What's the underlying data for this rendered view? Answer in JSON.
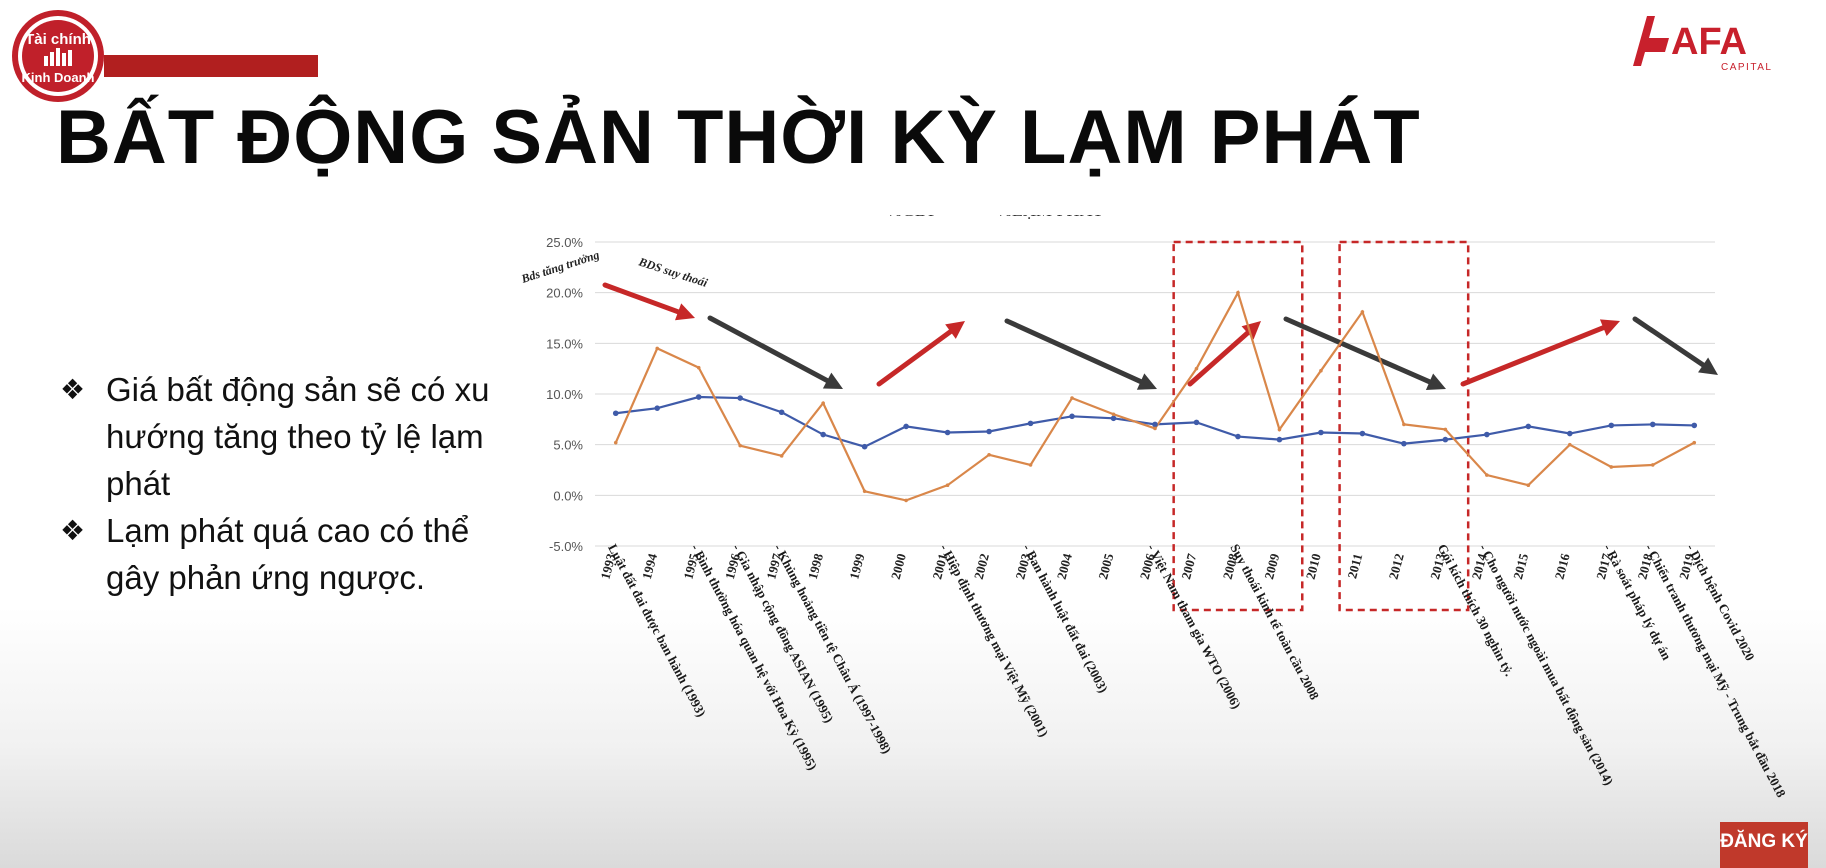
{
  "branding": {
    "left_logo_line1": "Tài chính",
    "left_logo_line2": "Kinh Doanh",
    "right_logo_name": "AFA",
    "right_logo_sub": "CAPITAL",
    "accent_color": "#b11f1f",
    "right_logo_color": "#c8202c"
  },
  "slide": {
    "title": "BẤT ĐỘNG SẢN THỜI KỲ LẠM PHÁT",
    "bullets": [
      "Giá bất động sản sẽ có xu hướng tăng theo tỷ lệ lạm phát",
      "Lạm phát quá cao có thể gây phản ứng ngược."
    ],
    "bullet_marker": "❖"
  },
  "subscribe_label": "ĐĂNG KÝ",
  "chart_data": {
    "type": "line",
    "title": "",
    "xlabel": "",
    "ylabel": "",
    "ylim": [
      -5,
      25
    ],
    "y_ticks": [
      "-5.0%",
      "0.0%",
      "5.0%",
      "10.0%",
      "15.0%",
      "20.0%",
      "25.0%"
    ],
    "y_tick_values": [
      -5,
      0,
      5,
      10,
      15,
      20,
      25
    ],
    "grid": true,
    "legend_position": "top",
    "categories": [
      "1993",
      "1994",
      "1995",
      "1996",
      "1997",
      "1998",
      "1999",
      "2000",
      "2001",
      "2002",
      "2003",
      "2004",
      "2005",
      "2006",
      "2007",
      "2008",
      "2009",
      "2010",
      "2011",
      "2012",
      "2013",
      "2014",
      "2015",
      "2016",
      "2017",
      "2018",
      "2019"
    ],
    "series": [
      {
        "name": "%GDP",
        "color": "#3f5ba9",
        "values": [
          8.1,
          8.6,
          9.7,
          9.6,
          8.2,
          6.0,
          4.8,
          6.8,
          6.2,
          6.3,
          7.1,
          7.8,
          7.6,
          7.0,
          7.2,
          5.8,
          5.5,
          6.2,
          6.1,
          5.1,
          5.5,
          6.0,
          6.8,
          6.1,
          6.9,
          7.0,
          6.9
        ]
      },
      {
        "name": "%LẠM PHÁT",
        "color": "#d9874a",
        "values": [
          5.2,
          14.5,
          12.6,
          4.9,
          3.9,
          9.1,
          0.4,
          -0.5,
          1.0,
          4.0,
          3.0,
          9.6,
          8.0,
          6.6,
          12.5,
          20.0,
          6.5,
          12.3,
          18.1,
          7.0,
          6.5,
          2.0,
          1.0,
          5.0,
          2.8,
          3.0,
          5.2
        ]
      }
    ],
    "event_labels": [
      {
        "year": "1993",
        "text": "Luật đất đai được ban hành (1993)"
      },
      {
        "year": "1995",
        "text": "- Bình thường hóa quan hệ với Hoa Kỳ (1995)"
      },
      {
        "year": "1996",
        "text": "- Gia nhập cộng đồng ASIAN (1995)"
      },
      {
        "year": "1997",
        "text": "- Khủng hoảng tiền tệ Châu Á (1997-1998)"
      },
      {
        "year": "2001",
        "text": "- Hiệp định thương mại Việt Mỹ (2001)"
      },
      {
        "year": "2003",
        "text": "- Ban hành luật đất đai (2003)"
      },
      {
        "year": "2006",
        "text": "- Việt Nam tham gia WTO (2006)"
      },
      {
        "year": "2008",
        "text": "Suy thoái kinh tế toàn cầu 2008"
      },
      {
        "year": "2013",
        "text": "Gói kích thích 30 nghìn tỷ."
      },
      {
        "year": "2014",
        "text": "- Cho người nước ngoài mua bất động sản (2014)"
      },
      {
        "year": "2017",
        "text": "- Rà soát pháp lý dự án"
      },
      {
        "year": "2018",
        "text": "- Chiến tranh thương mại Mỹ - Trung bắt đầu 2018"
      },
      {
        "year": "2019",
        "text": "- Dịch bệnh Covid 2020"
      }
    ],
    "annotations": [
      {
        "text": "Bds tăng trưởng"
      },
      {
        "text": "BDS suy thoái"
      }
    ],
    "trend_arrows": [
      {
        "trend": "up",
        "color": "#c62828"
      },
      {
        "trend": "down",
        "color": "#3a3a3a"
      },
      {
        "trend": "up",
        "color": "#c62828"
      },
      {
        "trend": "down",
        "color": "#3a3a3a"
      },
      {
        "trend": "up",
        "color": "#c62828"
      },
      {
        "trend": "down",
        "color": "#3a3a3a"
      },
      {
        "trend": "up",
        "color": "#c62828"
      },
      {
        "trend": "down",
        "color": "#3a3a3a"
      }
    ],
    "highlight_ranges": [
      {
        "from": "2007",
        "to": "2009",
        "color": "#c62828"
      },
      {
        "from": "2011",
        "to": "2013",
        "color": "#c62828"
      }
    ]
  }
}
